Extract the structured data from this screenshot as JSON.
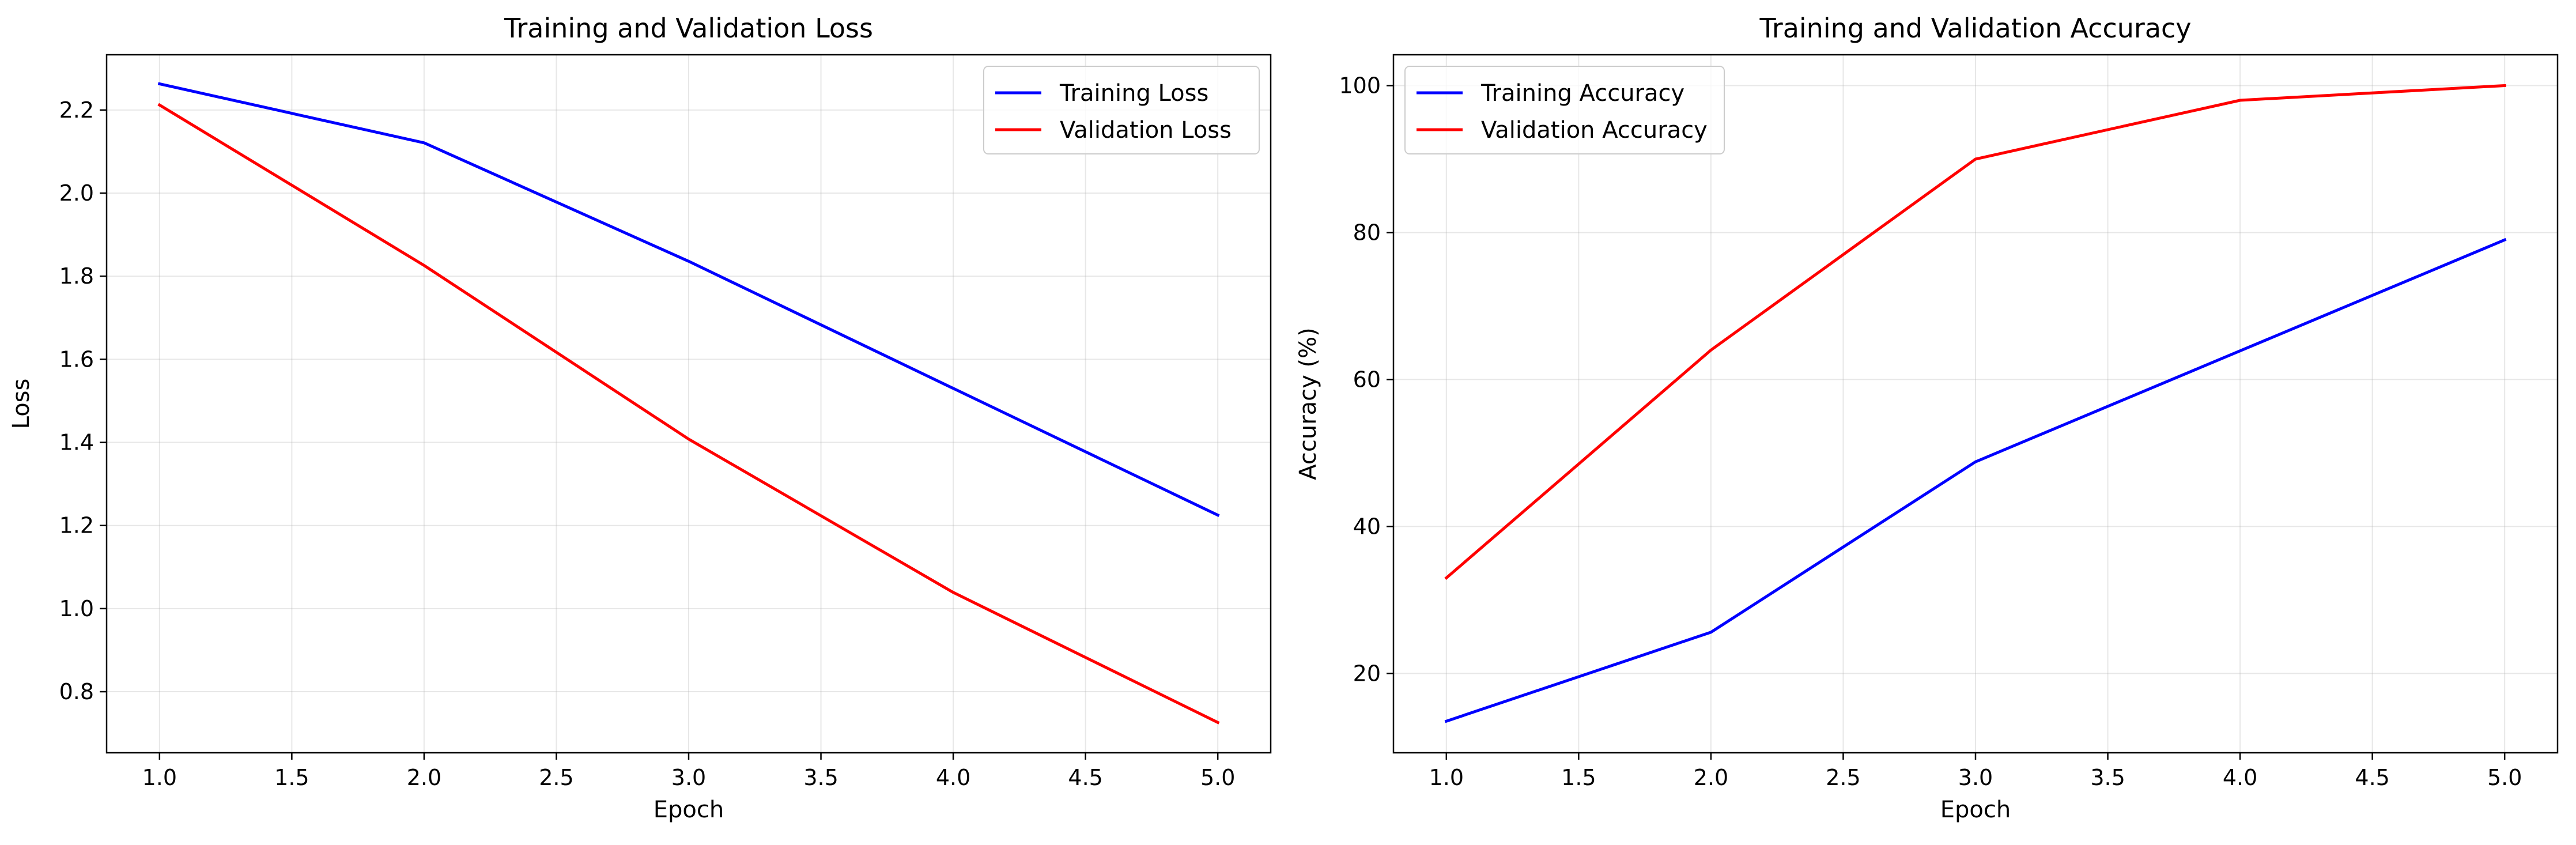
{
  "chart_data": [
    {
      "type": "line",
      "title": "Training and Validation Loss",
      "xlabel": "Epoch",
      "ylabel": "Loss",
      "xlim": [
        0.8,
        5.2
      ],
      "ylim": [
        0.653,
        2.333
      ],
      "xticks": [
        "1.0",
        "1.5",
        "2.0",
        "2.5",
        "3.0",
        "3.5",
        "4.0",
        "4.5",
        "5.0"
      ],
      "yticks": [
        "0.8",
        "1.0",
        "1.2",
        "1.4",
        "1.6",
        "1.8",
        "2.0",
        "2.2"
      ],
      "grid": true,
      "legend": "top-right",
      "x": [
        1,
        2,
        3,
        4,
        5
      ],
      "series": [
        {
          "name": "Training Loss",
          "color": "#0000ff",
          "values": [
            2.263,
            2.121,
            1.836,
            1.53,
            1.225
          ]
        },
        {
          "name": "Validation Loss",
          "color": "#ff0000",
          "values": [
            2.212,
            1.826,
            1.408,
            1.039,
            0.726
          ]
        }
      ]
    },
    {
      "type": "line",
      "title": "Training and Validation Accuracy",
      "xlabel": "Epoch",
      "ylabel": "Accuracy (%)",
      "xlim": [
        0.8,
        5.2
      ],
      "ylim": [
        9.2,
        104.2
      ],
      "xticks": [
        "1.0",
        "1.5",
        "2.0",
        "2.5",
        "3.0",
        "3.5",
        "4.0",
        "4.5",
        "5.0"
      ],
      "yticks": [
        "20",
        "40",
        "60",
        "80",
        "100"
      ],
      "grid": true,
      "legend": "top-left",
      "x": [
        1,
        2,
        3,
        4,
        5
      ],
      "series": [
        {
          "name": "Training Accuracy",
          "color": "#0000ff",
          "values": [
            13.5,
            25.6,
            48.8,
            63.9,
            79.0
          ]
        },
        {
          "name": "Validation Accuracy",
          "color": "#ff0000",
          "values": [
            33.0,
            64.0,
            90.0,
            98.0,
            100.0
          ]
        }
      ]
    }
  ]
}
